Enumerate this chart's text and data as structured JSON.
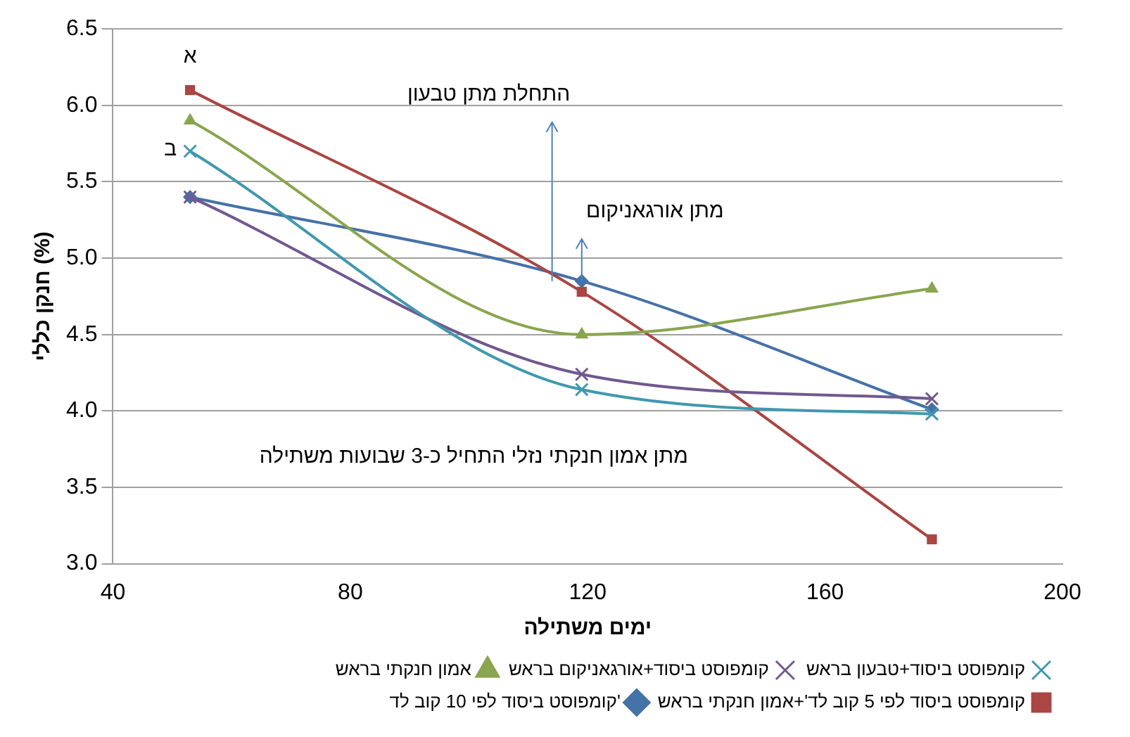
{
  "chart_data": {
    "type": "line",
    "xlabel": "ימים משתילה",
    "ylabel": "חנקן כללי (%)",
    "x": [
      53,
      119,
      178
    ],
    "series": [
      {
        "name": "קומפוסט ביסוד לפי 10 קוב לד'",
        "color": "#4572a7",
        "marker": "diamond",
        "values": [
          5.4,
          4.85,
          4.01
        ]
      },
      {
        "name": "קומפוסט ביסוד לפי 5 קוב לד'+אמון חנקתי בראש",
        "color": "#aa4643",
        "marker": "square",
        "values": [
          6.1,
          4.78,
          3.16
        ]
      },
      {
        "name": "אמון חנקתי בראש",
        "color": "#89a54e",
        "marker": "triangle",
        "values": [
          5.9,
          4.5,
          4.8
        ]
      },
      {
        "name": "קומפוסט ביסוד+אורגאניקום בראש",
        "color": "#71588f",
        "marker": "cross",
        "values": [
          5.4,
          4.24,
          4.08
        ]
      },
      {
        "name": "קומפוסט ביסוד+טבעון בראש",
        "color": "#4198af",
        "marker": "cross",
        "values": [
          5.7,
          4.14,
          3.98
        ]
      }
    ],
    "xlim": [
      40,
      200
    ],
    "xticks": [
      40,
      80,
      120,
      160,
      200
    ],
    "ylim": [
      3,
      6.5
    ],
    "yticks": [
      {
        "value": 3,
        "label": "3.0"
      },
      {
        "value": 3.5,
        "label": "3.5"
      },
      {
        "value": 4,
        "label": "4.0"
      },
      {
        "value": 4.5,
        "label": "4.5"
      },
      {
        "value": 5,
        "label": "5.0"
      },
      {
        "value": 5.5,
        "label": "5.5"
      },
      {
        "value": 6,
        "label": "6.0"
      },
      {
        "value": 6.5,
        "label": "6.5"
      }
    ],
    "grid": "y",
    "legend": "bottom",
    "annotations": [
      {
        "text": "א",
        "x": 53,
        "y": 6.1
      },
      {
        "text": "ב",
        "x": 53,
        "y": 5.4
      },
      {
        "text": "התחלת מתן טבעון",
        "x": 114,
        "y": 4.85
      },
      {
        "text": "מתן אורגאניקום",
        "x": 119,
        "y": 4.85
      },
      "מתן אמון חנקתי נזלי התחיל כ-3 שבועות משתילה"
    ]
  }
}
